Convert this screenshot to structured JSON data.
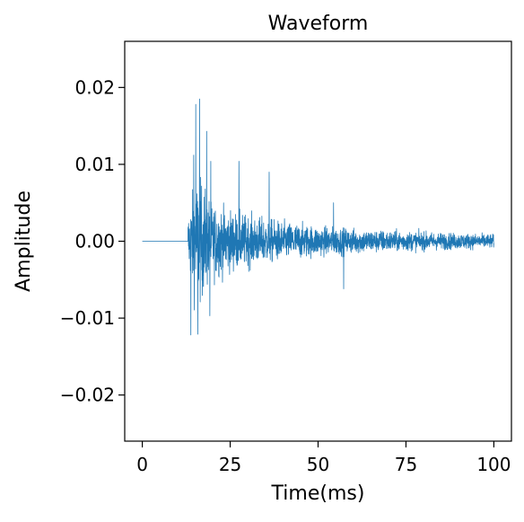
{
  "chart_data": {
    "type": "line",
    "title": "Waveform",
    "xlabel": "Time(ms)",
    "ylabel": "Amplitude",
    "xlim": [
      -5,
      105
    ],
    "ylim": [
      -0.026,
      0.026
    ],
    "x_ticks": [
      0,
      25,
      50,
      75,
      100
    ],
    "x_tick_labels": [
      "0",
      "25",
      "50",
      "75",
      "100"
    ],
    "y_ticks": [
      0.02,
      0.01,
      0.0,
      -0.01,
      -0.02
    ],
    "y_tick_labels": [
      "0.02",
      "0.01",
      "0.00",
      "−0.01",
      "−0.02"
    ],
    "grid": false,
    "legend": "none",
    "series": [
      {
        "color": "#1f77b4",
        "segments": [
          {
            "kind": "flat",
            "x_start": 0,
            "x_end": 13.0,
            "y": 0.0
          },
          {
            "kind": "decaying-noise",
            "x_start": 13.0,
            "x_end": 100,
            "envelope": [
              {
                "x": 13.0,
                "amp": 0.006
              },
              {
                "x": 15.0,
                "amp": 0.0125
              },
              {
                "x": 16.0,
                "amp": 0.0135
              },
              {
                "x": 20.0,
                "amp": 0.008
              },
              {
                "x": 25.0,
                "amp": 0.0065
              },
              {
                "x": 30.0,
                "amp": 0.0055
              },
              {
                "x": 40.0,
                "amp": 0.0042
              },
              {
                "x": 50.0,
                "amp": 0.0032
              },
              {
                "x": 60.0,
                "amp": 0.0027
              },
              {
                "x": 75.0,
                "amp": 0.0021
              },
              {
                "x": 90.0,
                "amp": 0.0017
              },
              {
                "x": 100.0,
                "amp": 0.0015
              }
            ],
            "peaks": [
              {
                "x": 15.2,
                "y": 0.0178
              },
              {
                "x": 16.3,
                "y": 0.0185
              },
              {
                "x": 14.6,
                "y": 0.0112
              },
              {
                "x": 18.3,
                "y": 0.0143
              },
              {
                "x": 19.2,
                "y": -0.0097
              },
              {
                "x": 19.5,
                "y": 0.0104
              },
              {
                "x": 13.8,
                "y": -0.0122
              },
              {
                "x": 15.8,
                "y": -0.0121
              },
              {
                "x": 27.5,
                "y": 0.0104
              },
              {
                "x": 36.1,
                "y": 0.009
              },
              {
                "x": 57.3,
                "y": -0.0062
              },
              {
                "x": 54.4,
                "y": 0.005
              }
            ]
          }
        ]
      }
    ]
  }
}
